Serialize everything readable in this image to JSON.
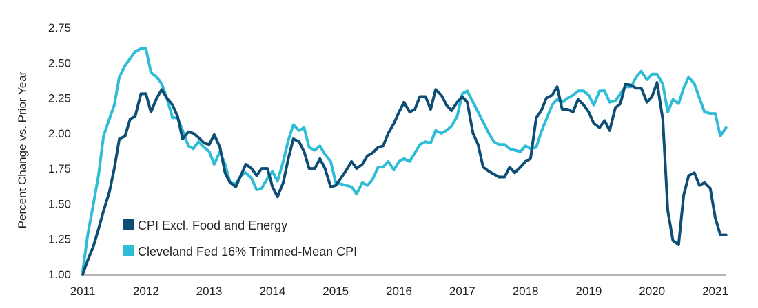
{
  "chart_data": {
    "type": "line",
    "title": "",
    "xlabel": "",
    "ylabel": "Percent Change vs. Prior Year",
    "xlim": [
      2011.0,
      2021.17
    ],
    "ylim": [
      1.0,
      2.75
    ],
    "x_ticks": [
      2011,
      2012,
      2013,
      2014,
      2015,
      2016,
      2017,
      2018,
      2019,
      2020,
      2021
    ],
    "x_tick_labels": [
      "2011",
      "2012",
      "2013",
      "2014",
      "2015",
      "2016",
      "2017",
      "2018",
      "2019",
      "2020",
      "2021"
    ],
    "y_ticks": [
      1.0,
      1.25,
      1.5,
      1.75,
      2.0,
      2.25,
      2.5,
      2.75
    ],
    "y_tick_labels": [
      "1.00",
      "1.25",
      "1.50",
      "1.75",
      "2.00",
      "2.25",
      "2.50",
      "2.75"
    ],
    "grid": false,
    "legend_position": "bottom-left",
    "series": [
      {
        "name": "CPI Excl. Food and Energy",
        "color": "#0e4d74",
        "x": [
          2011.0,
          2011.08,
          2011.17,
          2011.25,
          2011.33,
          2011.42,
          2011.5,
          2011.58,
          2011.67,
          2011.75,
          2011.83,
          2011.92,
          2012.0,
          2012.08,
          2012.17,
          2012.25,
          2012.33,
          2012.42,
          2012.5,
          2012.58,
          2012.67,
          2012.75,
          2012.83,
          2012.92,
          2013.0,
          2013.08,
          2013.17,
          2013.25,
          2013.33,
          2013.42,
          2013.5,
          2013.58,
          2013.67,
          2013.75,
          2013.83,
          2013.92,
          2014.0,
          2014.08,
          2014.17,
          2014.25,
          2014.33,
          2014.42,
          2014.5,
          2014.58,
          2014.67,
          2014.75,
          2014.83,
          2014.92,
          2015.0,
          2015.08,
          2015.17,
          2015.25,
          2015.33,
          2015.42,
          2015.5,
          2015.58,
          2015.67,
          2015.75,
          2015.83,
          2015.92,
          2016.0,
          2016.08,
          2016.17,
          2016.25,
          2016.33,
          2016.42,
          2016.5,
          2016.58,
          2016.67,
          2016.75,
          2016.83,
          2016.92,
          2017.0,
          2017.08,
          2017.17,
          2017.25,
          2017.33,
          2017.42,
          2017.5,
          2017.58,
          2017.67,
          2017.75,
          2017.83,
          2017.92,
          2018.0,
          2018.08,
          2018.17,
          2018.25,
          2018.33,
          2018.42,
          2018.5,
          2018.58,
          2018.67,
          2018.75,
          2018.83,
          2018.92,
          2019.0,
          2019.08,
          2019.17,
          2019.25,
          2019.33,
          2019.42,
          2019.5,
          2019.58,
          2019.67,
          2019.75,
          2019.83,
          2019.92,
          2020.0,
          2020.08,
          2020.17,
          2020.25,
          2020.33,
          2020.42,
          2020.5,
          2020.58,
          2020.67,
          2020.75,
          2020.83,
          2020.92,
          2021.0,
          2021.08,
          2021.17
        ],
        "y": [
          1.0,
          1.1,
          1.2,
          1.32,
          1.45,
          1.58,
          1.75,
          1.96,
          1.98,
          2.1,
          2.12,
          2.28,
          2.28,
          2.15,
          2.25,
          2.31,
          2.25,
          2.2,
          2.12,
          1.96,
          2.01,
          2.0,
          1.97,
          1.93,
          1.92,
          1.99,
          1.9,
          1.72,
          1.65,
          1.62,
          1.7,
          1.78,
          1.75,
          1.7,
          1.75,
          1.75,
          1.62,
          1.55,
          1.65,
          1.82,
          1.96,
          1.94,
          1.87,
          1.75,
          1.75,
          1.82,
          1.75,
          1.62,
          1.63,
          1.68,
          1.74,
          1.8,
          1.75,
          1.78,
          1.84,
          1.86,
          1.9,
          1.91,
          2.0,
          2.07,
          2.15,
          2.22,
          2.15,
          2.17,
          2.26,
          2.26,
          2.17,
          2.31,
          2.27,
          2.2,
          2.16,
          2.22,
          2.26,
          2.22,
          2.0,
          1.92,
          1.76,
          1.73,
          1.71,
          1.69,
          1.69,
          1.76,
          1.72,
          1.76,
          1.8,
          1.82,
          2.11,
          2.16,
          2.25,
          2.27,
          2.33,
          2.17,
          2.17,
          2.15,
          2.24,
          2.2,
          2.15,
          2.07,
          2.04,
          2.09,
          2.02,
          2.18,
          2.21,
          2.35,
          2.34,
          2.32,
          2.32,
          2.22,
          2.26,
          2.36,
          2.1,
          1.45,
          1.24,
          1.21,
          1.56,
          1.7,
          1.72,
          1.63,
          1.65,
          1.61,
          1.4,
          1.28,
          1.28
        ]
      },
      {
        "name": "Cleveland Fed 16% Trimmed-Mean CPI",
        "color": "#2fbcd6",
        "x": [
          2011.0,
          2011.08,
          2011.17,
          2011.25,
          2011.33,
          2011.42,
          2011.5,
          2011.58,
          2011.67,
          2011.75,
          2011.83,
          2011.92,
          2012.0,
          2012.08,
          2012.17,
          2012.25,
          2012.33,
          2012.42,
          2012.5,
          2012.58,
          2012.67,
          2012.75,
          2012.83,
          2012.92,
          2013.0,
          2013.08,
          2013.17,
          2013.25,
          2013.33,
          2013.42,
          2013.5,
          2013.58,
          2013.67,
          2013.75,
          2013.83,
          2013.92,
          2014.0,
          2014.08,
          2014.17,
          2014.25,
          2014.33,
          2014.42,
          2014.5,
          2014.58,
          2014.67,
          2014.75,
          2014.83,
          2014.92,
          2015.0,
          2015.08,
          2015.17,
          2015.25,
          2015.33,
          2015.42,
          2015.5,
          2015.58,
          2015.67,
          2015.75,
          2015.83,
          2015.92,
          2016.0,
          2016.08,
          2016.17,
          2016.25,
          2016.33,
          2016.42,
          2016.5,
          2016.58,
          2016.67,
          2016.75,
          2016.83,
          2016.92,
          2017.0,
          2017.08,
          2017.17,
          2017.25,
          2017.33,
          2017.42,
          2017.5,
          2017.58,
          2017.67,
          2017.75,
          2017.83,
          2017.92,
          2018.0,
          2018.08,
          2018.17,
          2018.25,
          2018.33,
          2018.42,
          2018.5,
          2018.58,
          2018.67,
          2018.75,
          2018.83,
          2018.92,
          2019.0,
          2019.08,
          2019.17,
          2019.25,
          2019.33,
          2019.42,
          2019.5,
          2019.58,
          2019.67,
          2019.75,
          2019.83,
          2019.92,
          2020.0,
          2020.08,
          2020.17,
          2020.25,
          2020.33,
          2020.42,
          2020.5,
          2020.58,
          2020.67,
          2020.75,
          2020.83,
          2020.92,
          2021.0,
          2021.08,
          2021.17
        ],
        "y": [
          1.02,
          1.28,
          1.5,
          1.7,
          1.98,
          2.1,
          2.2,
          2.4,
          2.48,
          2.53,
          2.58,
          2.6,
          2.6,
          2.43,
          2.4,
          2.35,
          2.25,
          2.11,
          2.11,
          2.02,
          1.91,
          1.89,
          1.94,
          1.9,
          1.87,
          1.78,
          1.87,
          1.78,
          1.65,
          1.64,
          1.7,
          1.72,
          1.68,
          1.6,
          1.61,
          1.68,
          1.73,
          1.66,
          1.8,
          1.95,
          2.06,
          2.02,
          2.04,
          1.9,
          1.88,
          1.91,
          1.85,
          1.8,
          1.65,
          1.64,
          1.63,
          1.62,
          1.57,
          1.65,
          1.63,
          1.67,
          1.76,
          1.76,
          1.8,
          1.74,
          1.8,
          1.82,
          1.8,
          1.86,
          1.92,
          1.94,
          1.93,
          2.02,
          2.0,
          2.02,
          2.05,
          2.12,
          2.28,
          2.3,
          2.22,
          2.15,
          2.08,
          2.0,
          1.94,
          1.92,
          1.92,
          1.89,
          1.88,
          1.87,
          1.91,
          1.89,
          1.9,
          2.01,
          2.1,
          2.2,
          2.24,
          2.22,
          2.25,
          2.27,
          2.3,
          2.3,
          2.27,
          2.2,
          2.3,
          2.3,
          2.22,
          2.23,
          2.28,
          2.33,
          2.33,
          2.4,
          2.44,
          2.38,
          2.42,
          2.42,
          2.35,
          2.15,
          2.24,
          2.21,
          2.32,
          2.4,
          2.35,
          2.25,
          2.15,
          2.14,
          2.14,
          1.98,
          2.04
        ]
      }
    ]
  }
}
